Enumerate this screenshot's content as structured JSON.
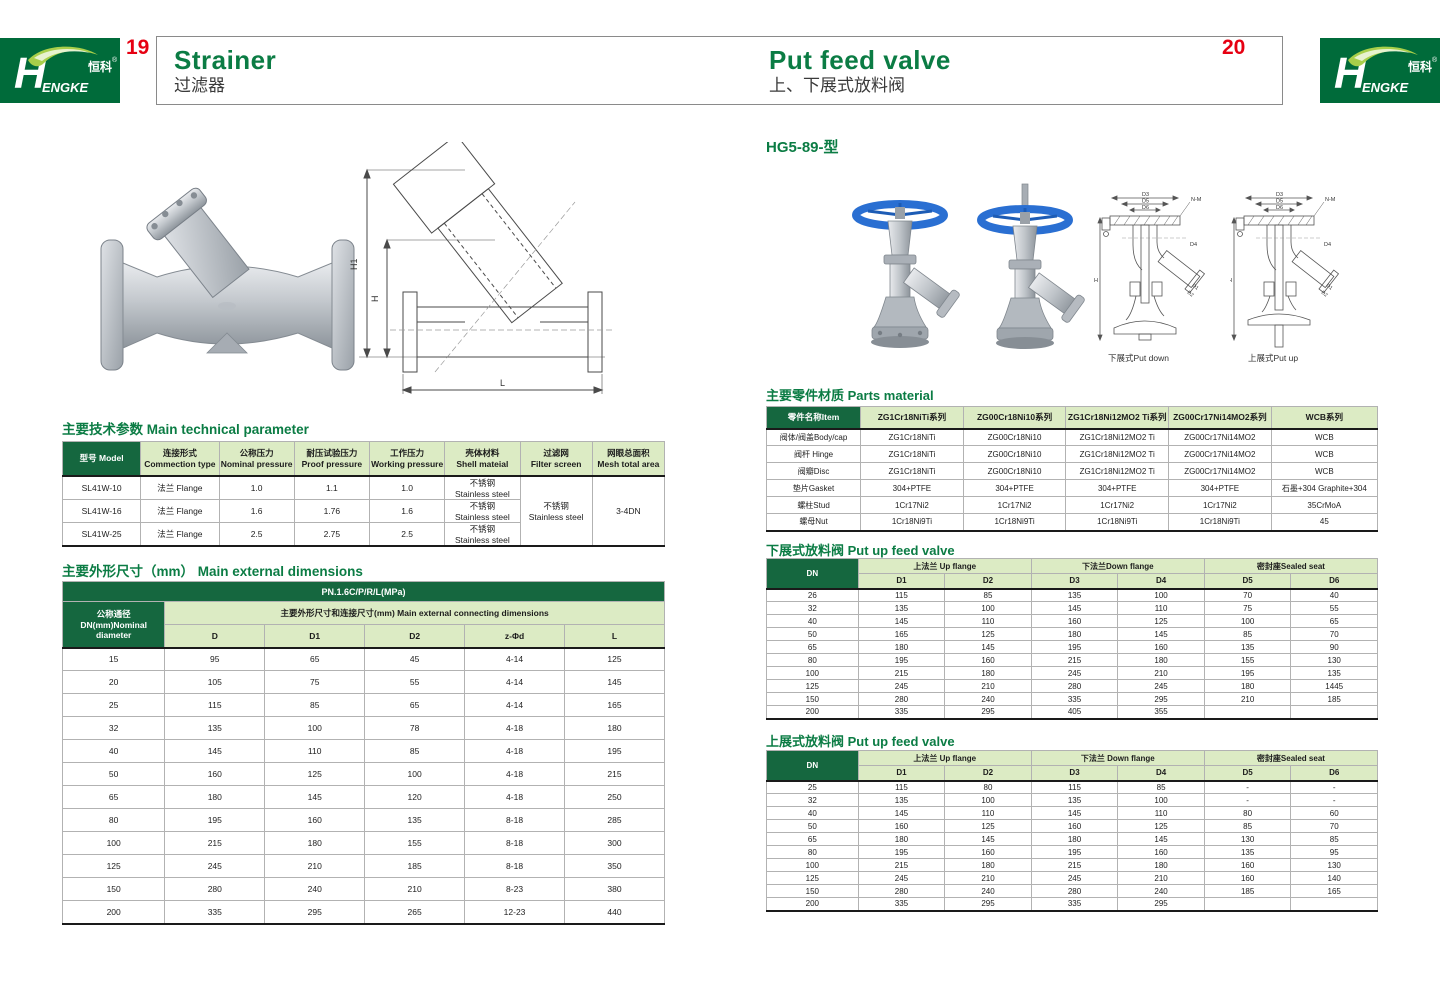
{
  "colors": {
    "brand_green": "#006b3a",
    "title_green": "#0b7c44",
    "page_num_red": "#e60012",
    "table_header_dark": "#15673f",
    "table_header_light": "#dcebc4",
    "handwheel_blue": "#2a6fd2"
  },
  "header": {
    "page_left": "19",
    "page_right": "20",
    "brand_mark": {
      "initial": "H",
      "rest": "ENGKE",
      "cn": "恒科",
      "reg": "®"
    },
    "left_title_en": "Strainer",
    "left_title_cn": "过滤器",
    "right_title_en": "Put feed valve",
    "right_title_cn": "上、下展式放料阀"
  },
  "left_page": {
    "drawing_labels": {
      "h1": "H1",
      "h": "H",
      "l": "L"
    },
    "tech_params": {
      "title_cn": "主要技术参数",
      "title_en": "Main technical parameter",
      "headers": [
        "型号 Model",
        "连接形式\nCommection type",
        "公称压力\nNominal pressure",
        "耐压试验压力\nProof pressure",
        "工作压力\nWorking pressure",
        "壳体材料\nShell mateial",
        "过滤网\nFilter screen",
        "网眼总面积\nMesh total area"
      ],
      "rows": [
        [
          "SL41W-10",
          "法兰 Flange",
          "1.0",
          "1.1",
          "1.0",
          "不锈钢\nStainless steel"
        ],
        [
          "SL41W-16",
          "法兰 Flange",
          "1.6",
          "1.76",
          "1.6",
          "不锈钢\nStainless steel"
        ],
        [
          "SL41W-25",
          "法兰 Flange",
          "2.5",
          "2.75",
          "2.5",
          "不锈钢\nStainless steel"
        ]
      ],
      "filter_screen_merged": "不锈钢\nStainless steel",
      "mesh_total_area_merged": "3-4DN"
    },
    "dimensions": {
      "title_cn": "主要外形尺寸（mm）",
      "title_en": "Main external dimensions",
      "pn": "PN.1.6C/P/R/L(MPa)",
      "dn_header": "公称通径\nDN(mm)Nominal\ndiameter",
      "group_header": "主要外形尺寸和连接尺寸(mm) Main external connecting dimensions",
      "columns": [
        "D",
        "D1",
        "D2",
        "z-Φd",
        "L"
      ],
      "rows": [
        [
          "15",
          "95",
          "65",
          "45",
          "4-14",
          "125"
        ],
        [
          "20",
          "105",
          "75",
          "55",
          "4-14",
          "145"
        ],
        [
          "25",
          "115",
          "85",
          "65",
          "4-14",
          "165"
        ],
        [
          "32",
          "135",
          "100",
          "78",
          "4-18",
          "180"
        ],
        [
          "40",
          "145",
          "110",
          "85",
          "4-18",
          "195"
        ],
        [
          "50",
          "160",
          "125",
          "100",
          "4-18",
          "215"
        ],
        [
          "65",
          "180",
          "145",
          "120",
          "4-18",
          "250"
        ],
        [
          "80",
          "195",
          "160",
          "135",
          "8-18",
          "285"
        ],
        [
          "100",
          "215",
          "180",
          "155",
          "8-18",
          "300"
        ],
        [
          "125",
          "245",
          "210",
          "185",
          "8-18",
          "350"
        ],
        [
          "150",
          "280",
          "240",
          "210",
          "8-23",
          "380"
        ],
        [
          "200",
          "335",
          "295",
          "265",
          "12-23",
          "440"
        ]
      ]
    }
  },
  "right_page": {
    "model": "HG5-89-型",
    "drawing1_caption": "下展式Put down",
    "drawing2_caption": "上展式Put up",
    "drawing_labels": {
      "d1": "D1",
      "d2": "D2",
      "d3": "D3",
      "d4": "D4",
      "d5": "D5",
      "d6": "D6",
      "nm": "N-M",
      "h": "H"
    },
    "parts": {
      "title_cn": "主要零件材质",
      "title_en": "Parts material",
      "headers": [
        "零件名称Item",
        "ZG1Cr18NiTi系列",
        "ZG00Cr18Ni10系列",
        "ZG1Cr18Ni12MO2 Ti系列",
        "ZG00Cr17Ni14MO2系列",
        "WCB系列"
      ],
      "rows": [
        [
          "阀体/阀盖Body/cap",
          "ZG1Cr18NiTi",
          "ZG00Cr18Ni10",
          "ZG1Cr18Ni12MO2 Ti",
          "ZG00Cr17Ni14MO2",
          "WCB"
        ],
        [
          "阀杆 Hinge",
          "ZG1Cr18NiTi",
          "ZG00Cr18Ni10",
          "ZG1Cr18Ni12MO2 Ti",
          "ZG00Cr17Ni14MO2",
          "WCB"
        ],
        [
          "阀瓣Disc",
          "ZG1Cr18NiTi",
          "ZG00Cr18Ni10",
          "ZG1Cr18Ni12MO2 Ti",
          "ZG00Cr17Ni14MO2",
          "WCB"
        ],
        [
          "垫片Gasket",
          "304+PTFE",
          "304+PTFE",
          "304+PTFE",
          "304+PTFE",
          "石墨+304 Graphite+304"
        ],
        [
          "螺柱Stud",
          "1Cr17Ni2",
          "1Cr17Ni2",
          "1Cr17Ni2",
          "1Cr17Ni2",
          "35CrMoA"
        ],
        [
          "螺母Nut",
          "1Cr18Ni9Ti",
          "1Cr18Ni9Ti",
          "1Cr18Ni9Ti",
          "1Cr18Ni9Ti",
          "45"
        ]
      ]
    },
    "down_table": {
      "title_cn": "下展式放料阀",
      "title_en": "Put up feed valve",
      "dn_label": "DN",
      "groups": [
        "上法兰 Up flange",
        "下法兰Down flange",
        "密封座Sealed seat"
      ],
      "columns": [
        "D1",
        "D2",
        "D3",
        "D4",
        "D5",
        "D6"
      ],
      "rows": [
        [
          "26",
          "115",
          "85",
          "135",
          "100",
          "70",
          "40"
        ],
        [
          "32",
          "135",
          "100",
          "145",
          "110",
          "75",
          "55"
        ],
        [
          "40",
          "145",
          "110",
          "160",
          "125",
          "100",
          "65"
        ],
        [
          "50",
          "165",
          "125",
          "180",
          "145",
          "85",
          "70"
        ],
        [
          "65",
          "180",
          "145",
          "195",
          "160",
          "135",
          "90"
        ],
        [
          "80",
          "195",
          "160",
          "215",
          "180",
          "155",
          "130"
        ],
        [
          "100",
          "215",
          "180",
          "245",
          "210",
          "195",
          "135"
        ],
        [
          "125",
          "245",
          "210",
          "280",
          "245",
          "180",
          "1445"
        ],
        [
          "150",
          "280",
          "240",
          "335",
          "295",
          "210",
          "185"
        ],
        [
          "200",
          "335",
          "295",
          "405",
          "355",
          "",
          ""
        ]
      ]
    },
    "up_table": {
      "title_cn": "上展式放料阀",
      "title_en": "Put up feed valve",
      "dn_label": "DN",
      "groups": [
        "上法兰 Up flange",
        "下法兰 Down flange",
        "密封座Sealed seat"
      ],
      "columns": [
        "D1",
        "D2",
        "D3",
        "D4",
        "D5",
        "D6"
      ],
      "rows": [
        [
          "25",
          "115",
          "80",
          "115",
          "85",
          "-",
          "-"
        ],
        [
          "32",
          "135",
          "100",
          "135",
          "100",
          "-",
          "-"
        ],
        [
          "40",
          "145",
          "110",
          "145",
          "110",
          "80",
          "60"
        ],
        [
          "50",
          "160",
          "125",
          "160",
          "125",
          "85",
          "70"
        ],
        [
          "65",
          "180",
          "145",
          "180",
          "145",
          "130",
          "85"
        ],
        [
          "80",
          "195",
          "160",
          "195",
          "160",
          "135",
          "95"
        ],
        [
          "100",
          "215",
          "180",
          "215",
          "180",
          "160",
          "130"
        ],
        [
          "125",
          "245",
          "210",
          "245",
          "210",
          "160",
          "140"
        ],
        [
          "150",
          "280",
          "240",
          "280",
          "240",
          "185",
          "165"
        ],
        [
          "200",
          "335",
          "295",
          "335",
          "295",
          "",
          ""
        ]
      ]
    }
  }
}
